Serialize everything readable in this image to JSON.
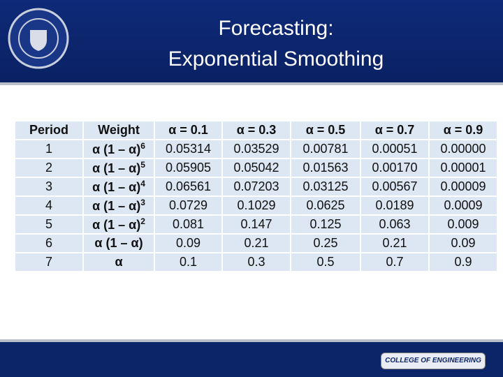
{
  "header": {
    "title_line1": "Forecasting:",
    "title_line2": "Exponential Smoothing"
  },
  "table": {
    "headers": [
      "Period",
      "Weight",
      "α = 0.1",
      "α = 0.3",
      "α = 0.5",
      "α = 0.7",
      "α = 0.9"
    ],
    "rows": [
      {
        "period": "1",
        "weight": "α (1 – α)",
        "power": "6",
        "values": [
          "0.05314",
          "0.03529",
          "0.00781",
          "0.00051",
          "0.00000"
        ]
      },
      {
        "period": "2",
        "weight": "α (1 – α)",
        "power": "5",
        "values": [
          "0.05905",
          "0.05042",
          "0.01563",
          "0.00170",
          "0.00001"
        ]
      },
      {
        "period": "3",
        "weight": "α (1 – α)",
        "power": "4",
        "values": [
          "0.06561",
          "0.07203",
          "0.03125",
          "0.00567",
          "0.00009"
        ]
      },
      {
        "period": "4",
        "weight": "α (1 – α)",
        "power": "3",
        "values": [
          "0.0729",
          "0.1029",
          "0.0625",
          "0.0189",
          "0.0009"
        ]
      },
      {
        "period": "5",
        "weight": "α (1 – α)",
        "power": "2",
        "values": [
          "0.081",
          "0.147",
          "0.125",
          "0.063",
          "0.009"
        ]
      },
      {
        "period": "6",
        "weight": "α (1 – α)",
        "values": [
          "0.09",
          "0.21",
          "0.25",
          "0.21",
          "0.09"
        ]
      },
      {
        "period": "7",
        "weight": "α",
        "values": [
          "0.1",
          "0.3",
          "0.5",
          "0.7",
          "0.9"
        ]
      }
    ]
  },
  "footer": {
    "logo_text": "COLLEGE OF ENGINEERING"
  }
}
